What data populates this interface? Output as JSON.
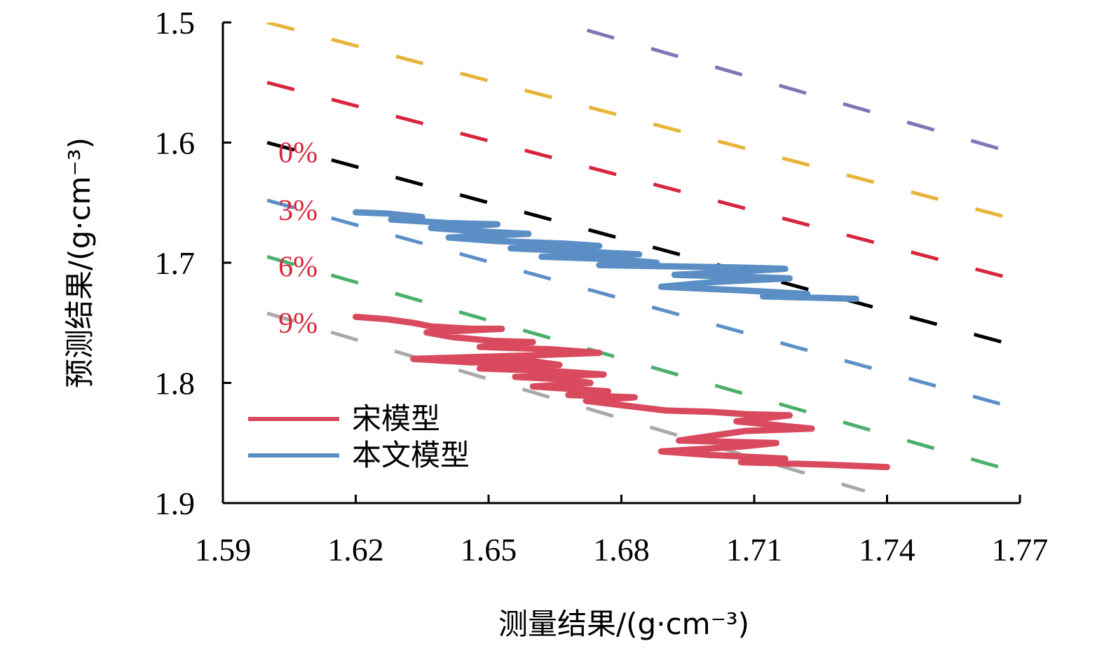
{
  "chart_data": {
    "type": "line",
    "title": "",
    "xlabel": "测量结果/(g·cm⁻³)",
    "ylabel": "预测结果/(g·cm⁻³)",
    "xlim": [
      1.59,
      1.77
    ],
    "ylim": [
      1.5,
      1.9
    ],
    "y_inverted": true,
    "x_ticks": [
      "1.59",
      "1.62",
      "1.65",
      "1.68",
      "1.71",
      "1.74",
      "1.77"
    ],
    "y_ticks": [
      "1.5",
      "1.6",
      "1.7",
      "1.8",
      "1.9"
    ],
    "grid": false,
    "legend_position": "bottom-left",
    "error_bands": [
      {
        "label": "",
        "color": "#7f77b5",
        "x": [
          1.6,
          1.77
        ],
        "y": [
          1.43,
          1.61
        ]
      },
      {
        "label": "",
        "color": "#e8b43a",
        "x": [
          1.6,
          1.77
        ],
        "y": [
          1.5,
          1.665
        ]
      },
      {
        "label": "",
        "color": "#d7263d",
        "x": [
          1.6,
          1.77
        ],
        "y": [
          1.55,
          1.715
        ]
      },
      {
        "label": "0%",
        "color": "#000000",
        "x": [
          1.6,
          1.77
        ],
        "y": [
          1.6,
          1.77
        ]
      },
      {
        "label": "3%",
        "color": "#5b8fc7",
        "x": [
          1.6,
          1.77
        ],
        "y": [
          1.648,
          1.822
        ]
      },
      {
        "label": "6%",
        "color": "#4caf6e",
        "x": [
          1.6,
          1.77
        ],
        "y": [
          1.695,
          1.875
        ]
      },
      {
        "label": "9%",
        "color": "#a9a9a9",
        "x": [
          1.6,
          1.735
        ],
        "y": [
          1.742,
          1.89
        ]
      }
    ],
    "series": [
      {
        "name": "宋模型",
        "color": "#d94a5e",
        "x": [
          1.62,
          1.627,
          1.633,
          1.637,
          1.646,
          1.653,
          1.636,
          1.642,
          1.651,
          1.66,
          1.648,
          1.664,
          1.675,
          1.66,
          1.633,
          1.646,
          1.66,
          1.666,
          1.648,
          1.664,
          1.676,
          1.656,
          1.667,
          1.673,
          1.66,
          1.677,
          1.668,
          1.683,
          1.672,
          1.69,
          1.7,
          1.708,
          1.718,
          1.706,
          1.723,
          1.708,
          1.693,
          1.715,
          1.707,
          1.689,
          1.7,
          1.717,
          1.707,
          1.726,
          1.74
        ],
        "y": [
          1.745,
          1.747,
          1.75,
          1.753,
          1.755,
          1.755,
          1.758,
          1.762,
          1.765,
          1.766,
          1.77,
          1.772,
          1.775,
          1.777,
          1.78,
          1.783,
          1.782,
          1.785,
          1.788,
          1.79,
          1.793,
          1.795,
          1.797,
          1.8,
          1.803,
          1.807,
          1.81,
          1.812,
          1.815,
          1.823,
          1.824,
          1.826,
          1.827,
          1.832,
          1.838,
          1.84,
          1.848,
          1.85,
          1.853,
          1.857,
          1.86,
          1.863,
          1.866,
          1.868,
          1.87
        ]
      },
      {
        "name": "本文模型",
        "color": "#5b8ec4",
        "x": [
          1.62,
          1.627,
          1.635,
          1.628,
          1.641,
          1.652,
          1.637,
          1.648,
          1.659,
          1.641,
          1.652,
          1.667,
          1.675,
          1.655,
          1.667,
          1.684,
          1.662,
          1.678,
          1.688,
          1.675,
          1.691,
          1.707,
          1.717,
          1.703,
          1.692,
          1.71,
          1.718,
          1.701,
          1.689,
          1.707,
          1.722,
          1.712,
          1.733
        ],
        "y": [
          1.658,
          1.659,
          1.662,
          1.664,
          1.667,
          1.668,
          1.671,
          1.674,
          1.676,
          1.679,
          1.682,
          1.684,
          1.686,
          1.688,
          1.69,
          1.693,
          1.695,
          1.697,
          1.7,
          1.702,
          1.703,
          1.704,
          1.705,
          1.708,
          1.71,
          1.712,
          1.713,
          1.716,
          1.72,
          1.723,
          1.726,
          1.728,
          1.73
        ]
      }
    ]
  }
}
